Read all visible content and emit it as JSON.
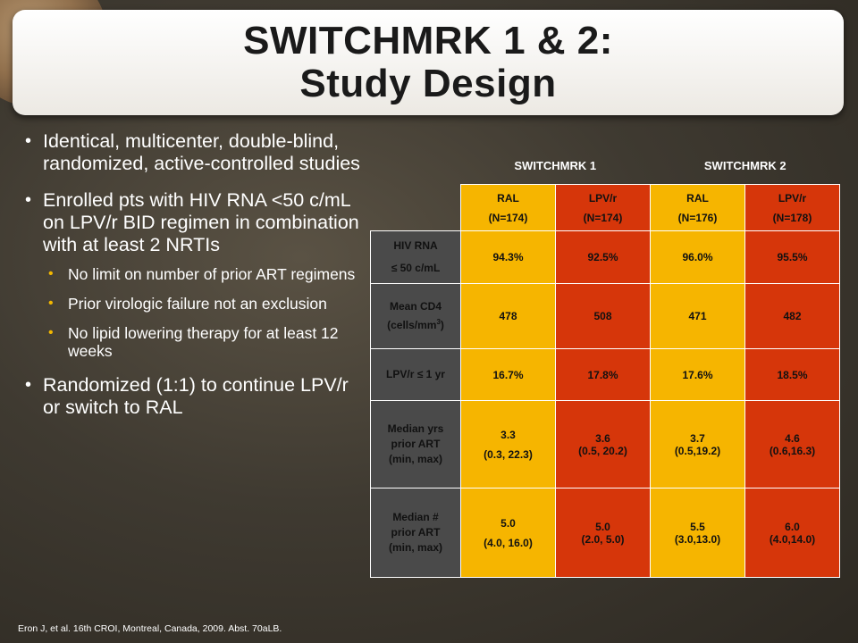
{
  "title": {
    "line1": "SWITCHMRK 1 & 2:",
    "line2": "Study Design"
  },
  "bullets": {
    "b1": "Identical, multicenter, double-blind, randomized, active-controlled studies",
    "b2": "Enrolled pts with HIV RNA <50 c/mL on LPV/r BID regimen in combination with at least 2 NRTIs",
    "sub1": "No limit on number of prior ART regimens",
    "sub2": "Prior virologic failure not an exclusion",
    "sub3": "No lipid lowering therapy for at least 12 weeks",
    "b3": "Randomized (1:1) to continue LPV/r or switch to RAL"
  },
  "table": {
    "trial1": "SWITCHMRK 1",
    "trial2": "SWITCHMRK 2",
    "columns": [
      {
        "arm": "RAL",
        "n": "(N=174)"
      },
      {
        "arm": "LPV/r",
        "n": "(N=174)"
      },
      {
        "arm": "RAL",
        "n": "(N=176)"
      },
      {
        "arm": "LPV/r",
        "n": "(N=178)"
      }
    ],
    "rows": {
      "hiv_rna": {
        "label1": "HIV RNA",
        "label2": "≤ 50  c/mL",
        "values": [
          "94.3%",
          "92.5%",
          "96.0%",
          "95.5%"
        ]
      },
      "cd4": {
        "label1": "Mean CD4",
        "label2a": "(cells/mm",
        "label2sup": "3",
        "label2b": ")",
        "values": [
          "478",
          "508",
          "471",
          "482"
        ]
      },
      "lpv1yr": {
        "label": "LPV/r ≤ 1 yr",
        "values": [
          "16.7%",
          "17.8%",
          "17.6%",
          "18.5%"
        ]
      },
      "yrs_art": {
        "label1": "Median yrs",
        "label2": "prior ART",
        "label3": "(min, max)",
        "values": [
          {
            "median": "3.3",
            "range": "(0.3, 22.3)"
          },
          {
            "median": "3.6",
            "range": "(0.5, 20.2)"
          },
          {
            "median": "3.7",
            "range": "(0.5,19.2)"
          },
          {
            "median": "4.6",
            "range": "(0.6,16.3)"
          }
        ]
      },
      "num_art": {
        "label1": "Median #",
        "label2": "prior ART",
        "label3": "(min, max)",
        "values": [
          {
            "median": "5.0",
            "range": "(4.0, 16.0)"
          },
          {
            "median": "5.0",
            "range": "(2.0, 5.0)"
          },
          {
            "median": "5.5",
            "range": "(3.0,13.0)"
          },
          {
            "median": "6.0",
            "range": "(4.0,14.0)"
          }
        ]
      }
    }
  },
  "footnote": "Eron J, et al. 16th CROI, Montreal, Canada, 2009. Abst. 70aLB.",
  "colors": {
    "ral": "#f6b500",
    "lpv": "#d6360a",
    "rowlabel": "#4a4a4a"
  }
}
